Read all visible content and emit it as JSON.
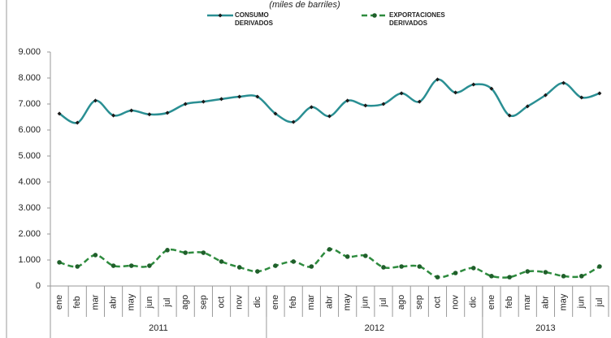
{
  "chart_data": {
    "type": "line",
    "subtitle": "(miles de barriles)",
    "categories": [
      "ene",
      "feb",
      "mar",
      "abr",
      "may",
      "jun",
      "jul",
      "ago",
      "sep",
      "oct",
      "nov",
      "dic",
      "ene",
      "feb",
      "mar",
      "abr",
      "may",
      "jun",
      "jul",
      "ago",
      "sep",
      "oct",
      "nov",
      "dic",
      "ene",
      "feb",
      "mar",
      "abr",
      "may",
      "jun",
      "jul"
    ],
    "years": [
      "2011",
      "2012",
      "2013"
    ],
    "series": [
      {
        "name": "CONSUMO DERIVADOS",
        "color": "#2a8f93",
        "marker_color": "#1a1a1a",
        "dash": false,
        "values": [
          6630,
          6280,
          7130,
          6560,
          6750,
          6600,
          6660,
          7000,
          7090,
          7190,
          7280,
          7280,
          6630,
          6310,
          6880,
          6530,
          7130,
          6940,
          7000,
          7410,
          7090,
          7940,
          7440,
          7750,
          7590,
          6560,
          6910,
          7340,
          7810,
          7250,
          7410
        ]
      },
      {
        "name": "EXPORTACIONES DERIVADOS",
        "color": "#2e8b3e",
        "marker_color": "#1f5f2a",
        "dash": true,
        "values": [
          910,
          750,
          1190,
          780,
          780,
          780,
          1380,
          1280,
          1280,
          940,
          720,
          560,
          780,
          940,
          750,
          1410,
          1130,
          1160,
          720,
          750,
          750,
          340,
          500,
          690,
          380,
          340,
          560,
          530,
          380,
          380,
          750
        ]
      }
    ],
    "ylim": [
      0,
      9000
    ],
    "yticks": [
      0,
      {
        "value": 1000,
        "label": "1.000"
      },
      {
        "value": 2000,
        "label": "2.000"
      },
      {
        "value": 3000,
        "label": "3.000"
      },
      {
        "value": 4000,
        "label": "4.000"
      },
      {
        "value": 5000,
        "label": "5.000"
      },
      {
        "value": 6000,
        "label": "6.000"
      },
      {
        "value": 7000,
        "label": "7.000"
      },
      {
        "value": 8000,
        "label": "8.000"
      },
      {
        "value": 9000,
        "label": "9.000"
      }
    ],
    "grid": false
  }
}
